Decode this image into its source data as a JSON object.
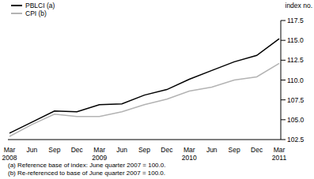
{
  "chart_data": {
    "type": "line",
    "y_label": "index no.",
    "categories": [
      "Mar 2008",
      "Jun",
      "Sep",
      "Dec",
      "Mar 2009",
      "Jun",
      "Sep",
      "Dec",
      "Mar 2010",
      "Jun",
      "Sep",
      "Dec",
      "Mar 2011"
    ],
    "series": [
      {
        "name": "PBLCI (a)",
        "color": "#000000",
        "values": [
          103.3,
          104.7,
          106.1,
          106.0,
          106.9,
          107.0,
          108.1,
          108.8,
          110.1,
          111.2,
          112.3,
          113.1,
          115.2
        ]
      },
      {
        "name": "CPI (b)",
        "color": "#b3b3b3",
        "values": [
          102.9,
          104.4,
          105.7,
          105.4,
          105.4,
          106.0,
          106.9,
          107.6,
          108.6,
          109.1,
          110.0,
          110.4,
          112.1
        ]
      }
    ],
    "ylim": [
      102.5,
      117.5
    ],
    "yticks": [
      {
        "value": 102.5,
        "label": "102.5"
      },
      {
        "value": 105,
        "label": "105.0"
      },
      {
        "value": 107.5,
        "label": "107.5"
      },
      {
        "value": 110,
        "label": "110.0"
      },
      {
        "value": 112.5,
        "label": "112.5"
      },
      {
        "value": 115,
        "label": "115.0"
      },
      {
        "value": 117.5,
        "label": "117.5"
      }
    ],
    "grid": false,
    "legend": "top-left",
    "notes": [
      "(a) Reference base of index: June quarter 2007 = 100.0.",
      "(b) Re-referenced to base of June quarter 2007 = 100.0."
    ]
  }
}
